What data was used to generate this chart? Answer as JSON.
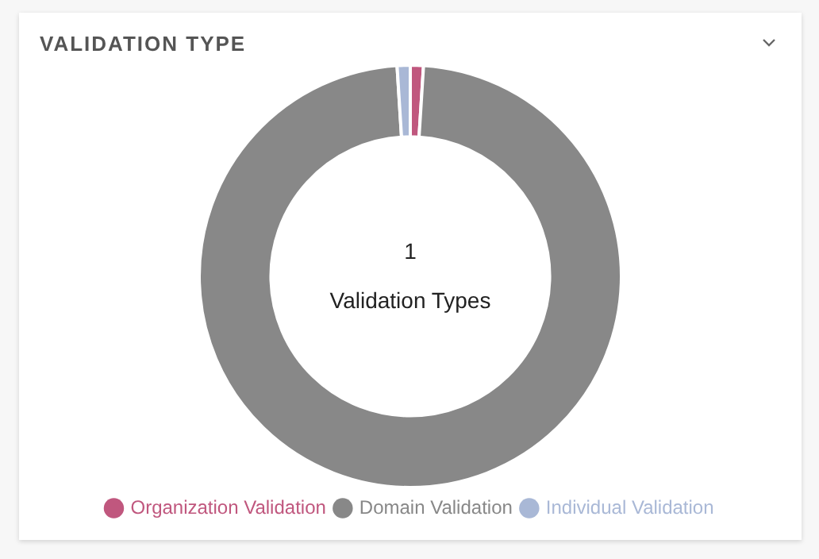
{
  "chart_data": {
    "type": "donut",
    "title": "VALIDATION TYPE",
    "categories": [
      "Organization Validation",
      "Domain Validation",
      "Individual Validation"
    ],
    "values": [
      1,
      98,
      1
    ],
    "colors": [
      "#c0577e",
      "#888888",
      "#a9b8d6"
    ],
    "annotations": [
      "1",
      "Validation Types"
    ],
    "legend": "bottom"
  }
}
